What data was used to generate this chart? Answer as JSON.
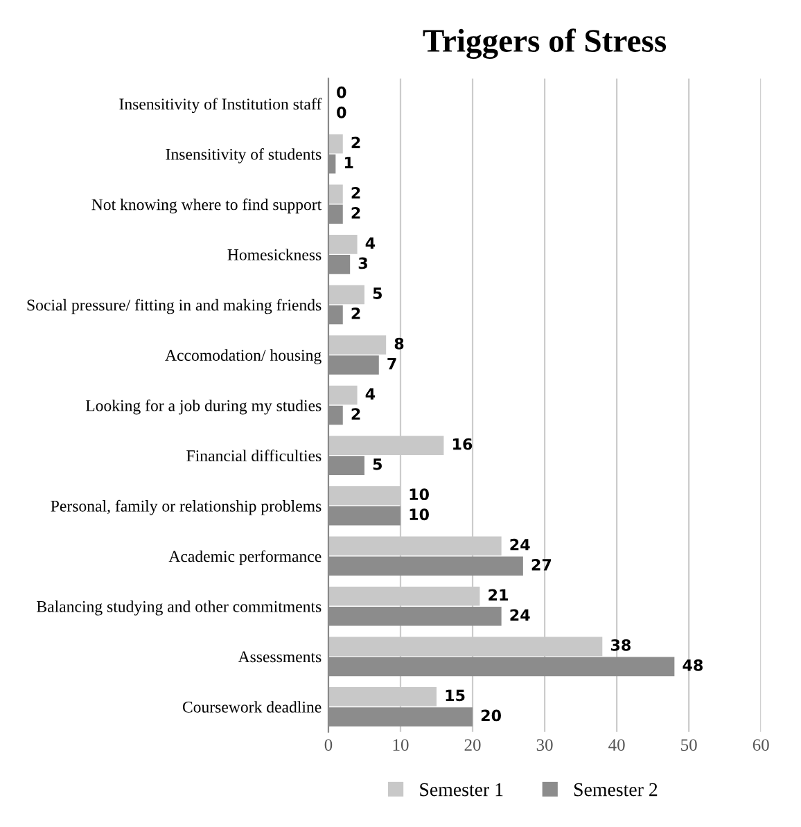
{
  "chart_data": {
    "type": "bar",
    "orientation": "horizontal",
    "title": "Triggers of Stress",
    "categories": [
      "Insensitivity of Institution staff",
      "Insensitivity of students",
      "Not knowing where to find support",
      "Homesickness",
      "Social pressure/ fitting in and making friends",
      "Accomodation/ housing",
      "Looking for a job during my studies",
      "Financial difficulties",
      "Personal, family or relationship problems",
      "Academic performance",
      "Balancing studying and other commitments",
      "Assessments",
      "Coursework deadline"
    ],
    "series": [
      {
        "name": "Semester 1",
        "color": "#c8c8c8",
        "values": [
          0,
          2,
          2,
          4,
          5,
          8,
          4,
          16,
          10,
          24,
          21,
          38,
          15
        ]
      },
      {
        "name": "Semester 2",
        "color": "#8c8c8c",
        "values": [
          0,
          1,
          2,
          3,
          2,
          7,
          2,
          5,
          10,
          27,
          24,
          48,
          20
        ]
      }
    ],
    "xlim": [
      0,
      60
    ],
    "xticks": [
      0,
      10,
      20,
      30,
      40,
      50,
      60
    ],
    "grid": "x",
    "legend": "bottom",
    "data_labels": true
  }
}
